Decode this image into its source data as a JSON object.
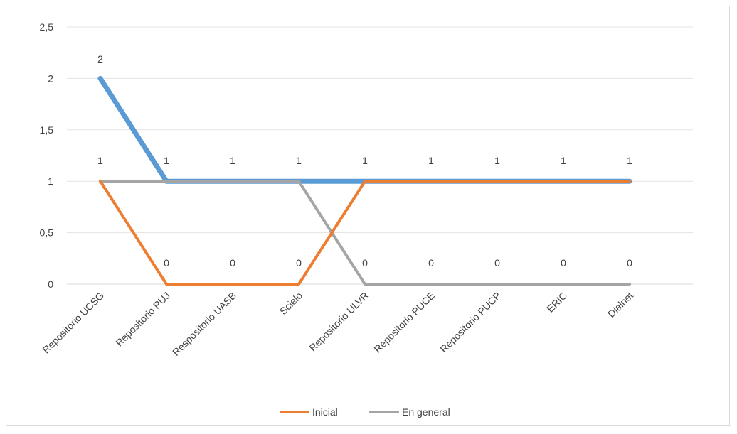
{
  "chart_data": {
    "type": "line",
    "categories": [
      "Repositorio UCSG",
      "Repositorio PUJ",
      "Respositorio UASB",
      "Scielo",
      "Repositorio ULVR",
      "Repositorio PUCE",
      "Repositorio PUCP",
      "ERIC",
      "Dialnet"
    ],
    "series": [
      {
        "values": [
          2,
          1,
          1,
          1,
          1,
          1,
          1,
          1,
          1
        ],
        "color": "#5b9bd5"
      },
      {
        "name": "Inicial",
        "values": [
          1,
          0,
          0,
          0,
          1,
          1,
          1,
          1,
          1
        ],
        "color": "#ed7d31"
      },
      {
        "name": "En general",
        "values": [
          1,
          1,
          1,
          1,
          0,
          0,
          0,
          0,
          0
        ],
        "color": "#a5a5a5"
      }
    ],
    "y_ticks": [
      "0",
      "0,5",
      "1",
      "1,5",
      "2",
      "2,5"
    ],
    "ylim": [
      0,
      2.5
    ],
    "top_labels": [
      "2",
      "1",
      "1",
      "1",
      "1",
      "1",
      "1",
      "1",
      "1"
    ],
    "bottom_labels": [
      "1",
      "0",
      "0",
      "0",
      "0",
      "0",
      "0",
      "0",
      "0"
    ],
    "legend": [
      "Inicial",
      "En general"
    ],
    "legend_position": "bottom",
    "grid": true
  }
}
